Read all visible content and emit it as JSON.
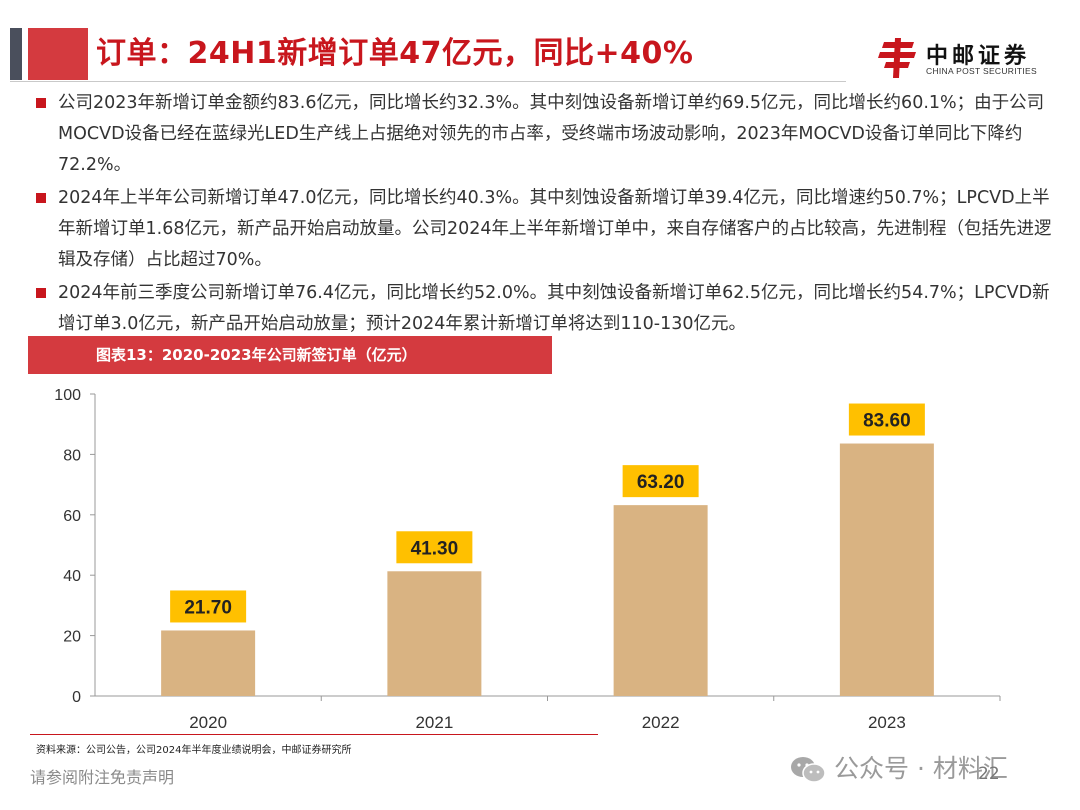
{
  "header": {
    "title": "订单：24H1新增订单47亿元，同比+40%",
    "logo_cn": "中邮证券",
    "logo_en": "CHINA POST SECURITIES",
    "accent_color": "#c8161d"
  },
  "bullets": [
    "公司2023年新增订单金额约83.6亿元，同比增长约32.3%。其中刻蚀设备新增订单约69.5亿元，同比增长约60.1%；由于公司MOCVD设备已经在蓝绿光LED生产线上占据绝对领先的市占率，受终端市场波动影响，2023年MOCVD设备订单同比下降约72.2%。",
    "2024年上半年公司新增订单47.0亿元，同比增长约40.3%。其中刻蚀设备新增订单39.4亿元，同比增速约50.7%；LPCVD上半年新增订单1.68亿元，新产品开始启动放量。公司2024年上半年新增订单中，来自存储客户的占比较高，先进制程（包括先进逻辑及存储）占比超过70%。",
    "2024年前三季度公司新增订单76.4亿元，同比增长约52.0%。其中刻蚀设备新增订单62.5亿元，同比增长约54.7%；LPCVD新增订单3.0亿元，新产品开始启动放量；预计2024年累计新增订单将达到110-130亿元。"
  ],
  "chart_data": {
    "type": "bar",
    "title": "图表13：2020-2023年公司新签订单（亿元）",
    "categories": [
      "2020",
      "2021",
      "2022",
      "2023"
    ],
    "values": [
      21.7,
      41.3,
      63.2,
      83.6
    ],
    "data_labels": [
      "21.70",
      "41.30",
      "63.20",
      "83.60"
    ],
    "y_ticks": [
      "0",
      "20",
      "40",
      "60",
      "80",
      "100"
    ],
    "ylim": [
      0,
      100
    ],
    "bar_color": "#d9b382",
    "label_bg_color": "#ffc000",
    "grid": false
  },
  "footer": {
    "source": "资料来源：公司公告，公司2024年半年度业绩说明会，中邮证券研究所",
    "disclaimer": "请参阅附注免责声明",
    "watermark": "公众号 · 材料汇",
    "page_number": "22"
  }
}
